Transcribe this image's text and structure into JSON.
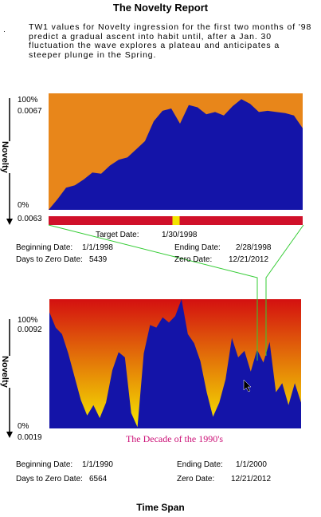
{
  "title": "The Novelty Report",
  "bullet": "·",
  "description": "TW1 values for Novelty ingression for the first two months of '98 predict a gradual ascent into habit until, after a Jan. 30 fluctuation the wave explores a plateau and anticipates a steeper plunge in the Spring.",
  "footer": "Time Span",
  "colors": {
    "top_background": "#e8861a",
    "area_fill": "#1414a8",
    "timeline_bar": "#d0102a",
    "timeline_marker": "#f2e400",
    "connector": "#33cc33",
    "gradient_top": "#d41010",
    "gradient_bottom": "#f5e800",
    "decade_label": "#cc1177"
  },
  "top_panel": {
    "y_axis_label": "Novelty",
    "ticks": {
      "top_pct": "100%",
      "top_val": "0.0067",
      "bottom_pct": "0%",
      "bottom_val": "0.0063"
    },
    "info": {
      "target_date_label": "Target Date:",
      "target_date": "1/30/1998",
      "beginning_label": "Beginning Date:",
      "beginning_date": "1/1/1998",
      "ending_label": "Ending Date:",
      "ending_date": "2/28/1998",
      "days_label": "Days to Zero Date:",
      "days_value": "5439",
      "zero_label": "Zero Date:",
      "zero_date": "12/21/2012"
    },
    "timeline_marker_fraction": 0.5
  },
  "bottom_panel": {
    "y_axis_label": "Novelty",
    "ticks": {
      "top_pct": "100%",
      "top_val": "0.0092",
      "bottom_pct": "0%",
      "bottom_val": "0.0019"
    },
    "decade_label": "The Decade of the 1990's",
    "info": {
      "beginning_label": "Beginning Date:",
      "beginning_date": "1/1/1990",
      "ending_label": "Ending Date:",
      "ending_date": "1/1/2000",
      "days_label": "Days to Zero Date:",
      "days_value": "6564",
      "zero_label": "Zero Date:",
      "zero_date": "12/21/2012"
    }
  },
  "chart_data": [
    {
      "type": "area",
      "title": "",
      "xlabel": "",
      "ylabel": "Novelty",
      "ylim": [
        0,
        100
      ],
      "x_start": "1/1/1998",
      "x_end": "2/28/1998",
      "values": [
        0,
        9,
        19,
        21,
        26,
        32,
        31,
        38,
        43,
        45,
        52,
        59,
        76,
        85,
        87,
        74,
        90,
        88,
        82,
        84,
        81,
        89,
        95,
        91,
        84,
        85,
        84,
        83,
        81,
        70
      ]
    },
    {
      "type": "area",
      "title": "",
      "xlabel": "",
      "ylabel": "Novelty",
      "ylim": [
        0,
        100
      ],
      "x_start": "1/1/1990",
      "x_end": "1/1/2000",
      "values": [
        90,
        78,
        73,
        58,
        40,
        22,
        10,
        18,
        8,
        20,
        45,
        59,
        55,
        12,
        1,
        58,
        80,
        78,
        86,
        82,
        87,
        100,
        73,
        66,
        52,
        28,
        9,
        20,
        38,
        70,
        55,
        60,
        44,
        61,
        51,
        67,
        28,
        35,
        18,
        35,
        20
      ]
    }
  ]
}
